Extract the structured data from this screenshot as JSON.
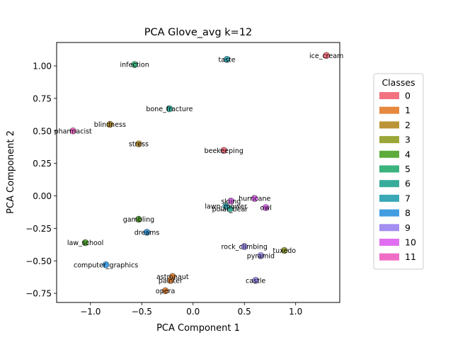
{
  "chart_data": {
    "type": "scatter",
    "title": "PCA Glove_avg k=12",
    "xlabel": "PCA Component 1",
    "ylabel": "PCA Component 2",
    "xlim": [
      -1.33,
      1.43
    ],
    "ylim": [
      -0.82,
      1.18
    ],
    "xticks": [
      -1.0,
      -0.5,
      0.0,
      0.5,
      1.0
    ],
    "xtick_labels": [
      "−1.0",
      "−0.5",
      "0.0",
      "0.5",
      "1.0"
    ],
    "yticks": [
      -0.75,
      -0.5,
      -0.25,
      0.0,
      0.25,
      0.5,
      0.75,
      1.0
    ],
    "ytick_labels": [
      "−0.75",
      "−0.50",
      "−0.25",
      "0.00",
      "0.25",
      "0.50",
      "0.75",
      "1.00"
    ],
    "grid": false,
    "legend": {
      "title": "Classes",
      "placement": "right, outside plot",
      "entries": [
        {
          "label": "0",
          "color": "#f2727f"
        },
        {
          "label": "1",
          "color": "#e6893f"
        },
        {
          "label": "2",
          "color": "#bb9438"
        },
        {
          "label": "3",
          "color": "#9ba638"
        },
        {
          "label": "4",
          "color": "#5eab3d"
        },
        {
          "label": "5",
          "color": "#3bb37c"
        },
        {
          "label": "6",
          "color": "#37ac9b"
        },
        {
          "label": "7",
          "color": "#3aa8b7"
        },
        {
          "label": "8",
          "color": "#429ee0"
        },
        {
          "label": "9",
          "color": "#a38ff0"
        },
        {
          "label": "10",
          "color": "#e06ef0"
        },
        {
          "label": "11",
          "color": "#f06dc6"
        }
      ]
    },
    "points": [
      {
        "label": "ice_cream",
        "x": 1.3,
        "y": 1.08,
        "class": 0
      },
      {
        "label": "beekeeping",
        "x": 0.3,
        "y": 0.35,
        "class": 0
      },
      {
        "label": "astronaut",
        "x": -0.2,
        "y": -0.62,
        "class": 1
      },
      {
        "label": "painter",
        "x": -0.22,
        "y": -0.65,
        "class": 1
      },
      {
        "label": "opera",
        "x": -0.27,
        "y": -0.73,
        "class": 1
      },
      {
        "label": "blindness",
        "x": -0.81,
        "y": 0.55,
        "class": 2
      },
      {
        "label": "stress",
        "x": -0.53,
        "y": 0.4,
        "class": 2
      },
      {
        "label": "tuxedo",
        "x": 0.89,
        "y": -0.42,
        "class": 3
      },
      {
        "label": "gambling",
        "x": -0.53,
        "y": -0.18,
        "class": 4
      },
      {
        "label": "law_school",
        "x": -1.05,
        "y": -0.36,
        "class": 4
      },
      {
        "label": "infection",
        "x": -0.57,
        "y": 1.01,
        "class": 5
      },
      {
        "label": "bone_fracture",
        "x": -0.23,
        "y": 0.67,
        "class": 6
      },
      {
        "label": "polar_bear",
        "x": 0.36,
        "y": -0.1,
        "class": 6
      },
      {
        "label": "taste",
        "x": 0.33,
        "y": 1.05,
        "class": 7
      },
      {
        "label": "lawn_mower",
        "x": 0.32,
        "y": -0.08,
        "class": 7
      },
      {
        "label": "dreams",
        "x": -0.45,
        "y": -0.28,
        "class": 8
      },
      {
        "label": "computer_graphics",
        "x": -0.85,
        "y": -0.53,
        "class": 8
      },
      {
        "label": "rock_climbing",
        "x": 0.5,
        "y": -0.39,
        "class": 9
      },
      {
        "label": "pyramid",
        "x": 0.66,
        "y": -0.46,
        "class": 9
      },
      {
        "label": "castle",
        "x": 0.61,
        "y": -0.65,
        "class": 9
      },
      {
        "label": "hurricane",
        "x": 0.6,
        "y": -0.02,
        "class": 10
      },
      {
        "label": "skiing",
        "x": 0.37,
        "y": -0.04,
        "class": 10
      },
      {
        "label": "owl",
        "x": 0.71,
        "y": -0.09,
        "class": 10
      },
      {
        "label": "pharmacist",
        "x": -1.17,
        "y": 0.5,
        "class": 11
      }
    ]
  }
}
